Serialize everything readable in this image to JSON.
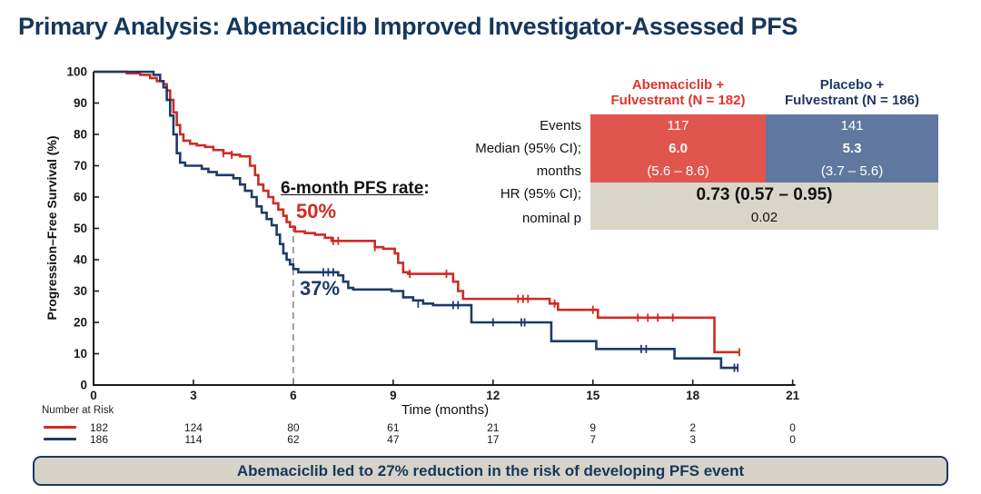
{
  "slide": {
    "title": "Primary Analysis: Abemaciclib Improved Investigator-Assessed PFS",
    "banner": "Abemaciclib led to 27% reduction in the risk of developing PFS event"
  },
  "colors": {
    "navy": "#1F3864",
    "red_curve": "#CE2B25",
    "blue_curve": "#1F3A68",
    "red_fill": "#E0564E",
    "blue_fill": "#60789F",
    "gray_fill": "#D9D5C9",
    "axis": "#1a1a1a",
    "dashed": "#8C8C8C"
  },
  "annotation": {
    "label": "6-month PFS rate",
    "colon": ":",
    "red_value": "50%",
    "blue_value": "37%"
  },
  "results_table": {
    "row_labels": {
      "events": "Events",
      "median_line1": "Median (95% CI);",
      "median_line2": "months",
      "hr_line1": "HR (95% CI);",
      "hr_line2": "nominal p"
    },
    "columns": [
      {
        "header_line1": "Abemaciclib +",
        "header_line2": "Fulvestrant (N = 182)",
        "events": "117",
        "median": "6.0",
        "median_ci": "(5.6 – 8.6)"
      },
      {
        "header_line1": "Placebo +",
        "header_line2": "Fulvestrant (N = 186)",
        "events": "141",
        "median": "5.3",
        "median_ci": "(3.7 – 5.6)"
      }
    ],
    "hr_value": "0.73 (0.57 – 0.95)",
    "nominal_p": "0.02"
  },
  "chart_data": {
    "type": "line",
    "subtype": "kaplan-meier-step",
    "xlabel": "Time (months)",
    "ylabel": "Progression–Free Survival (%)",
    "xlim": [
      0,
      21
    ],
    "ylim": [
      0,
      100
    ],
    "x_ticks": [
      0,
      3,
      6,
      9,
      12,
      15,
      18,
      21
    ],
    "y_ticks": [
      0,
      10,
      20,
      30,
      40,
      50,
      60,
      70,
      80,
      90,
      100
    ],
    "grid": false,
    "reference_line": {
      "x": 6,
      "to_pct": 51,
      "style": "dashed",
      "meaning": "6-month landmark"
    },
    "series": [
      {
        "name": "Abemaciclib + Fulvestrant",
        "color": "#CE2B25",
        "six_month_pfs_pct": 50,
        "median_months": 6.0,
        "points": [
          [
            0,
            100
          ],
          [
            1.0,
            99.5
          ],
          [
            1.4,
            99
          ],
          [
            1.7,
            98
          ],
          [
            1.9,
            97
          ],
          [
            2.1,
            96
          ],
          [
            2.2,
            94
          ],
          [
            2.3,
            91
          ],
          [
            2.4,
            87
          ],
          [
            2.5,
            83
          ],
          [
            2.6,
            80
          ],
          [
            2.7,
            78
          ],
          [
            2.9,
            77
          ],
          [
            3.1,
            76.5
          ],
          [
            3.35,
            76
          ],
          [
            3.6,
            75
          ],
          [
            3.9,
            74
          ],
          [
            4.15,
            73.5
          ],
          [
            4.4,
            73
          ],
          [
            4.7,
            70
          ],
          [
            4.85,
            67
          ],
          [
            4.95,
            64
          ],
          [
            5.1,
            62
          ],
          [
            5.25,
            60
          ],
          [
            5.4,
            58
          ],
          [
            5.55,
            56
          ],
          [
            5.7,
            54
          ],
          [
            5.8,
            52
          ],
          [
            5.9,
            50.5
          ],
          [
            6.05,
            49
          ],
          [
            6.35,
            48.5
          ],
          [
            6.65,
            48
          ],
          [
            6.95,
            47
          ],
          [
            7.15,
            46
          ],
          [
            8.45,
            44
          ],
          [
            8.7,
            43.5
          ],
          [
            9.05,
            42
          ],
          [
            9.15,
            39
          ],
          [
            9.3,
            36
          ],
          [
            9.45,
            35.5
          ],
          [
            10.8,
            33
          ],
          [
            10.95,
            30
          ],
          [
            11.1,
            27.5
          ],
          [
            13.7,
            26
          ],
          [
            13.95,
            24
          ],
          [
            15.15,
            21.5
          ],
          [
            18.65,
            10.5
          ],
          [
            19.4,
            10.5
          ]
        ],
        "censors": [
          [
            3.9,
            74
          ],
          [
            4.15,
            73.5
          ],
          [
            7.2,
            46
          ],
          [
            7.35,
            46
          ],
          [
            8.45,
            44
          ],
          [
            9.5,
            35.5
          ],
          [
            10.6,
            35.5
          ],
          [
            12.75,
            27.5
          ],
          [
            12.9,
            27.5
          ],
          [
            13.05,
            27.5
          ],
          [
            13.85,
            26
          ],
          [
            15.0,
            24
          ],
          [
            16.35,
            21.5
          ],
          [
            16.65,
            21.5
          ],
          [
            16.95,
            21.5
          ],
          [
            17.4,
            21.5
          ],
          [
            19.4,
            10.5
          ]
        ]
      },
      {
        "name": "Placebo + Fulvestrant",
        "color": "#1F3A68",
        "six_month_pfs_pct": 37,
        "median_months": 5.3,
        "points": [
          [
            0,
            100
          ],
          [
            1.8,
            99
          ],
          [
            2.0,
            97
          ],
          [
            2.1,
            95
          ],
          [
            2.2,
            91
          ],
          [
            2.3,
            86
          ],
          [
            2.4,
            80
          ],
          [
            2.5,
            74
          ],
          [
            2.6,
            71
          ],
          [
            2.75,
            70
          ],
          [
            3.25,
            69
          ],
          [
            3.45,
            68
          ],
          [
            3.7,
            67
          ],
          [
            4.2,
            66
          ],
          [
            4.4,
            64
          ],
          [
            4.55,
            62
          ],
          [
            4.75,
            60
          ],
          [
            4.9,
            57
          ],
          [
            5.05,
            55
          ],
          [
            5.2,
            53
          ],
          [
            5.35,
            51
          ],
          [
            5.5,
            48
          ],
          [
            5.6,
            45
          ],
          [
            5.7,
            42
          ],
          [
            5.8,
            40
          ],
          [
            5.9,
            38.5
          ],
          [
            6.0,
            37
          ],
          [
            6.15,
            36
          ],
          [
            7.35,
            35
          ],
          [
            7.5,
            33
          ],
          [
            7.65,
            31
          ],
          [
            7.8,
            30.5
          ],
          [
            8.95,
            30
          ],
          [
            9.3,
            28
          ],
          [
            9.6,
            27
          ],
          [
            9.9,
            26
          ],
          [
            10.2,
            25.5
          ],
          [
            11.35,
            20
          ],
          [
            13.75,
            14
          ],
          [
            15.1,
            11.5
          ],
          [
            17.45,
            8.5
          ],
          [
            18.85,
            5.5
          ],
          [
            19.35,
            5.5
          ]
        ],
        "censors": [
          [
            6.9,
            36
          ],
          [
            7.05,
            36
          ],
          [
            7.2,
            36
          ],
          [
            9.75,
            26
          ],
          [
            10.8,
            25.5
          ],
          [
            10.95,
            25.5
          ],
          [
            12.0,
            20
          ],
          [
            12.85,
            20
          ],
          [
            12.95,
            20
          ],
          [
            16.45,
            11.5
          ],
          [
            16.6,
            11.5
          ],
          [
            19.25,
            5.5
          ],
          [
            19.35,
            5.5
          ]
        ]
      }
    ]
  },
  "risk_table": {
    "label": "Number at Risk",
    "months": [
      0,
      3,
      6,
      9,
      12,
      15,
      18,
      21
    ],
    "rows": [
      {
        "name": "Abemaciclib + Fulvestrant",
        "color": "#CE2B25",
        "values": [
          "182",
          "124",
          "80",
          "61",
          "21",
          "9",
          "2",
          "0"
        ]
      },
      {
        "name": "Placebo + Fulvestrant",
        "color": "#1F3A68",
        "values": [
          "186",
          "114",
          "62",
          "47",
          "17",
          "7",
          "3",
          "0"
        ]
      }
    ]
  }
}
